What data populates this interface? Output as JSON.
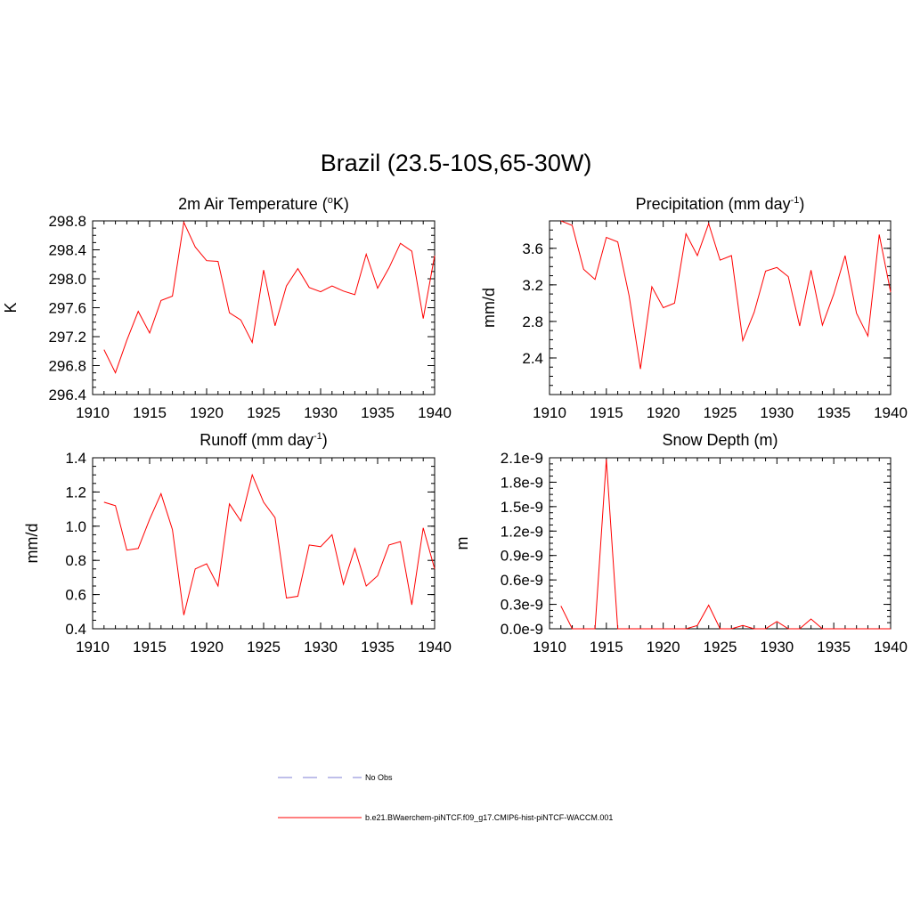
{
  "title": "Brazil (23.5-10S,65-30W)",
  "chart_data": [
    {
      "type": "line",
      "title_pre": "2m Air Temperature (",
      "title_sup": "o",
      "title_post": "K)",
      "ylabel": "K",
      "xlim": [
        1910,
        1940
      ],
      "ylim": [
        296.4,
        298.8
      ],
      "xticks": [
        1910,
        1915,
        1920,
        1925,
        1930,
        1935,
        1940
      ],
      "yticks": [
        "296.4",
        "296.8",
        "297.2",
        "297.6",
        "298.0",
        "298.4",
        "298.8"
      ],
      "yminor": 0.1,
      "x": [
        1911,
        1912,
        1913,
        1914,
        1915,
        1916,
        1917,
        1918,
        1919,
        1920,
        1921,
        1922,
        1923,
        1924,
        1925,
        1926,
        1927,
        1928,
        1929,
        1930,
        1931,
        1932,
        1933,
        1934,
        1935,
        1936,
        1937,
        1938,
        1939,
        1940
      ],
      "values": [
        297.02,
        296.7,
        297.15,
        297.55,
        297.25,
        297.7,
        297.76,
        298.78,
        298.44,
        298.25,
        298.24,
        297.53,
        297.43,
        297.12,
        298.12,
        297.35,
        297.9,
        298.14,
        297.88,
        297.82,
        297.9,
        297.83,
        297.78,
        298.34,
        297.87,
        298.15,
        298.49,
        298.38,
        297.45,
        298.32
      ]
    },
    {
      "type": "line",
      "title_pre": "Precipitation (mm day",
      "title_sup": "-1",
      "title_post": ")",
      "ylabel": "mm/d",
      "xlim": [
        1910,
        1940
      ],
      "ylim": [
        2.0,
        3.9
      ],
      "xticks": [
        1910,
        1915,
        1920,
        1925,
        1930,
        1935,
        1940
      ],
      "yticks": [
        "2.4",
        "2.8",
        "3.2",
        "3.6"
      ],
      "yminor": 0.1,
      "x": [
        1911,
        1912,
        1913,
        1914,
        1915,
        1916,
        1917,
        1918,
        1919,
        1920,
        1921,
        1922,
        1923,
        1924,
        1925,
        1926,
        1927,
        1928,
        1929,
        1930,
        1931,
        1932,
        1933,
        1934,
        1935,
        1936,
        1937,
        1938,
        1939,
        1940
      ],
      "values": [
        3.9,
        3.85,
        3.37,
        3.26,
        3.72,
        3.67,
        3.08,
        2.28,
        3.18,
        2.95,
        3.0,
        3.76,
        3.52,
        3.87,
        3.47,
        3.52,
        2.59,
        2.9,
        3.35,
        3.39,
        3.29,
        2.75,
        3.36,
        2.76,
        3.1,
        3.52,
        2.89,
        2.64,
        3.75,
        3.12
      ]
    },
    {
      "type": "line",
      "title_pre": "Runoff (mm day",
      "title_sup": "-1",
      "title_post": ")",
      "ylabel": "mm/d",
      "xlim": [
        1910,
        1940
      ],
      "ylim": [
        0.4,
        1.4
      ],
      "xticks": [
        1910,
        1915,
        1920,
        1925,
        1930,
        1935,
        1940
      ],
      "yticks": [
        "0.4",
        "0.6",
        "0.8",
        "1.0",
        "1.2",
        "1.4"
      ],
      "yminor": 0.05,
      "x": [
        1911,
        1912,
        1913,
        1914,
        1915,
        1916,
        1917,
        1918,
        1919,
        1920,
        1921,
        1922,
        1923,
        1924,
        1925,
        1926,
        1927,
        1928,
        1929,
        1930,
        1931,
        1932,
        1933,
        1934,
        1935,
        1936,
        1937,
        1938,
        1939,
        1940
      ],
      "values": [
        1.14,
        1.12,
        0.86,
        0.87,
        1.04,
        1.19,
        0.98,
        0.48,
        0.75,
        0.78,
        0.65,
        1.13,
        1.03,
        1.3,
        1.14,
        1.05,
        0.58,
        0.59,
        0.89,
        0.88,
        0.95,
        0.66,
        0.87,
        0.65,
        0.71,
        0.89,
        0.91,
        0.54,
        0.99,
        0.75
      ]
    },
    {
      "type": "line",
      "title_pre": "Snow Depth (m)",
      "title_sup": "",
      "title_post": "",
      "ylabel": "m",
      "xlim": [
        1910,
        1940
      ],
      "ylim": [
        0,
        2.1
      ],
      "xticks": [
        1910,
        1915,
        1920,
        1925,
        1930,
        1935,
        1940
      ],
      "yticks": [
        "0.0e-9",
        "0.3e-9",
        "0.6e-9",
        "0.9e-9",
        "1.2e-9",
        "1.5e-9",
        "1.8e-9",
        "2.1e-9"
      ],
      "yminor": 0.075,
      "x": [
        1911,
        1912,
        1913,
        1914,
        1915,
        1916,
        1917,
        1918,
        1919,
        1920,
        1921,
        1922,
        1923,
        1924,
        1925,
        1926,
        1927,
        1928,
        1929,
        1930,
        1931,
        1932,
        1933,
        1934,
        1935,
        1936,
        1937,
        1938,
        1939,
        1940
      ],
      "values": [
        0.28,
        0.0,
        0.0,
        0.0,
        2.08,
        0.0,
        0.0,
        0.0,
        0.0,
        0.0,
        0.0,
        0.0,
        0.04,
        0.29,
        0.0,
        0.0,
        0.04,
        0.0,
        0.0,
        0.09,
        0.0,
        0.0,
        0.12,
        0.0,
        0.0,
        0.0,
        0.0,
        0.0,
        0.0,
        0.0
      ]
    }
  ],
  "legend": [
    {
      "label": "No Obs",
      "color": "#9999dd",
      "style": "dashed"
    },
    {
      "label": "b.e21.BWaerchem-piNTCF.f09_g17.CMIP6-hist-piNTCF-WACCM.001",
      "color": "#ff0000",
      "style": "solid"
    }
  ],
  "line_color": "#ff0000"
}
